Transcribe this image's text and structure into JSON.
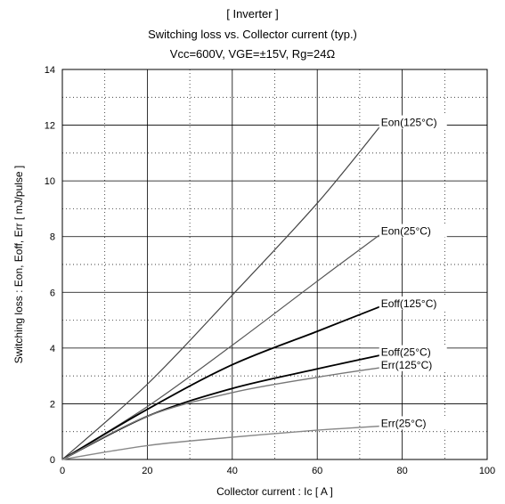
{
  "title_lines": [
    "[ Inverter ]",
    "Switching loss  vs.  Collector current  (typ.)",
    "Vcc=600V, VGE=±15V, Rg=24Ω"
  ],
  "chart_data": {
    "type": "line",
    "xlabel": "Collector current  :  Ic  [ A ]",
    "ylabel": "Switching loss  :   Eon, Eoff, Err  [ mJ/pulse ]",
    "xlim": [
      0,
      100
    ],
    "ylim": [
      0,
      14
    ],
    "x_ticks": [
      0,
      20,
      40,
      60,
      80,
      100
    ],
    "y_ticks": [
      0,
      2,
      4,
      6,
      8,
      10,
      12,
      14
    ],
    "grid": true,
    "series": [
      {
        "name": "Eon(125°C)",
        "x": [
          0,
          20,
          40,
          60,
          75
        ],
        "y": [
          0,
          2.7,
          5.9,
          9.2,
          12.0
        ]
      },
      {
        "name": "Eon(25°C)",
        "x": [
          0,
          20,
          40,
          60,
          75
        ],
        "y": [
          0,
          1.9,
          4.1,
          6.4,
          8.1
        ]
      },
      {
        "name": "Eoff(125°C)",
        "x": [
          0,
          20,
          40,
          60,
          75
        ],
        "y": [
          0,
          1.8,
          3.4,
          4.6,
          5.5
        ]
      },
      {
        "name": "Eoff(25°C)",
        "x": [
          0,
          20,
          40,
          60,
          75
        ],
        "y": [
          0,
          1.55,
          2.55,
          3.25,
          3.75
        ]
      },
      {
        "name": "Err(125°C)",
        "x": [
          0,
          20,
          40,
          60,
          75
        ],
        "y": [
          0,
          1.55,
          2.4,
          2.95,
          3.3
        ]
      },
      {
        "name": "Err(25°C)",
        "x": [
          0,
          20,
          40,
          60,
          75
        ],
        "y": [
          0,
          0.5,
          0.8,
          1.05,
          1.2
        ]
      }
    ],
    "series_colors": [
      "#444444",
      "#555555",
      "#000000",
      "#000000",
      "#777777",
      "#888888"
    ]
  }
}
